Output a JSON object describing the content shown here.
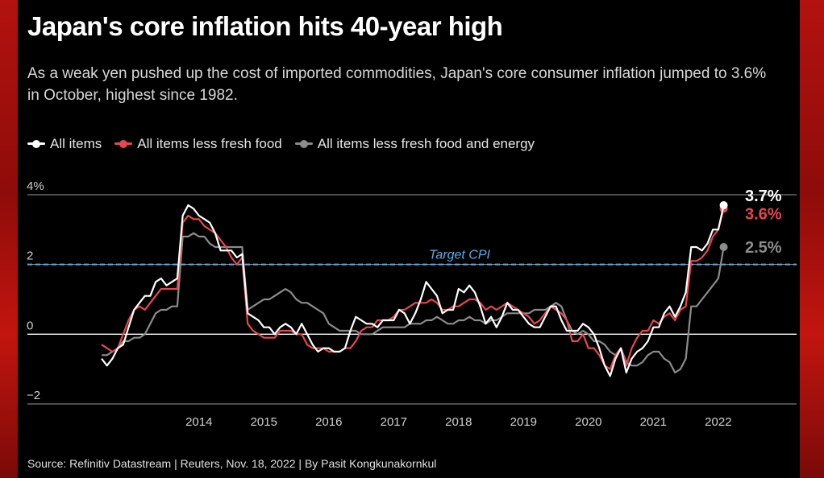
{
  "title": "Japan's core inflation hits 40-year high",
  "subtitle": "As a weak yen pushed up the cost of imported commodities, Japan's core consumer inflation jumped to 3.6% in October, highest since 1982.",
  "source": "Source: Refinitiv Datastream | Reuters, Nov. 18, 2022 | By Pasit Kongkunakornkul",
  "colors": {
    "all_items": "#ffffff",
    "less_fresh_food": "#e8474f",
    "less_fresh_food_energy": "#8c8c8c",
    "target": "#5aaee8",
    "background": "#000000"
  },
  "chart_data": {
    "type": "line",
    "x_start": "2013-01",
    "x_end": "2022-10",
    "x_tick_labels": [
      "2014",
      "2015",
      "2016",
      "2017",
      "2018",
      "2019",
      "2020",
      "2021",
      "2022"
    ],
    "y_tick_labels": [
      "4%",
      "2",
      "0",
      "−2"
    ],
    "y_ticks": [
      4,
      2,
      0,
      -2
    ],
    "ylim": [
      -2,
      4
    ],
    "grid": "horizontal",
    "legend_position": "top-left",
    "target": {
      "label": "Target CPI",
      "value": 2
    },
    "series": [
      {
        "name": "All items",
        "key": "all_items",
        "end_label": "3.7%",
        "values": [
          -0.7,
          -0.9,
          -0.7,
          -0.4,
          -0.3,
          0.2,
          0.7,
          0.9,
          1.1,
          1.1,
          1.5,
          1.6,
          1.4,
          1.5,
          1.6,
          3.4,
          3.7,
          3.6,
          3.4,
          3.3,
          3.2,
          2.9,
          2.4,
          2.4,
          2.4,
          2.2,
          2.3,
          0.6,
          0.5,
          0.4,
          0.2,
          0.2,
          0.0,
          0.2,
          0.3,
          0.2,
          0.0,
          0.3,
          0.0,
          -0.3,
          -0.5,
          -0.4,
          -0.4,
          -0.5,
          -0.5,
          -0.4,
          0.1,
          0.5,
          0.4,
          0.3,
          0.3,
          0.2,
          0.4,
          0.4,
          0.4,
          0.7,
          0.6,
          0.3,
          0.6,
          1.0,
          1.5,
          1.3,
          1.1,
          0.6,
          0.7,
          0.7,
          1.3,
          1.2,
          1.4,
          1.2,
          0.8,
          0.3,
          0.5,
          0.2,
          0.5,
          0.9,
          0.7,
          0.7,
          0.5,
          0.3,
          0.2,
          0.2,
          0.5,
          0.8,
          0.8,
          0.4,
          0.1,
          0.1,
          0.1,
          0.3,
          0.2,
          0.0,
          -0.4,
          -0.9,
          -1.2,
          -0.7,
          -0.4,
          -1.1,
          -0.7,
          -0.5,
          -0.4,
          -0.2,
          0.2,
          0.2,
          0.6,
          0.8,
          0.5,
          0.8,
          1.2,
          2.5,
          2.5,
          2.4,
          2.6,
          3.0,
          3.0,
          3.7
        ]
      },
      {
        "name": "All items less fresh food",
        "key": "less_fresh_food",
        "end_label": "3.6%",
        "values": [
          -0.3,
          -0.4,
          -0.5,
          -0.4,
          0.0,
          0.4,
          0.7,
          0.8,
          0.7,
          0.9,
          1.1,
          1.3,
          1.3,
          1.3,
          1.3,
          3.2,
          3.4,
          3.3,
          3.3,
          3.1,
          3.0,
          2.9,
          2.7,
          2.5,
          2.2,
          2.0,
          2.2,
          0.3,
          0.1,
          0.0,
          -0.1,
          -0.1,
          -0.1,
          0.1,
          0.1,
          0.1,
          0.0,
          0.0,
          -0.3,
          -0.4,
          -0.4,
          -0.4,
          -0.5,
          -0.5,
          -0.5,
          -0.4,
          -0.4,
          -0.2,
          0.1,
          0.2,
          0.2,
          0.4,
          0.4,
          0.4,
          0.5,
          0.7,
          0.7,
          0.8,
          0.9,
          0.9,
          0.9,
          1.0,
          0.9,
          0.7,
          0.7,
          0.8,
          0.8,
          0.9,
          1.0,
          1.0,
          0.9,
          0.7,
          0.8,
          0.7,
          0.8,
          0.9,
          0.8,
          0.7,
          0.6,
          0.5,
          0.3,
          0.4,
          0.6,
          0.8,
          0.7,
          0.6,
          0.4,
          -0.2,
          -0.2,
          0.0,
          -0.4,
          -0.4,
          -0.6,
          -0.9,
          -1.0,
          -0.6,
          -0.4,
          -0.9,
          -0.4,
          -0.1,
          0.1,
          0.1,
          0.4,
          0.3,
          0.5,
          0.6,
          0.4,
          0.7,
          0.8,
          2.1,
          2.1,
          2.2,
          2.4,
          2.8,
          3.0,
          3.6
        ]
      },
      {
        "name": "All items less fresh food and energy",
        "key": "less_fresh_food_energy",
        "end_label": "2.5%",
        "values": [
          -0.6,
          -0.6,
          -0.5,
          -0.4,
          -0.2,
          -0.2,
          -0.1,
          -0.1,
          0.0,
          0.3,
          0.6,
          0.7,
          0.7,
          0.8,
          0.8,
          2.8,
          2.8,
          2.9,
          2.8,
          2.8,
          2.6,
          2.5,
          2.5,
          2.5,
          2.5,
          2.5,
          2.5,
          0.7,
          0.8,
          0.9,
          1.0,
          1.0,
          1.1,
          1.2,
          1.3,
          1.2,
          1.0,
          0.9,
          0.9,
          0.8,
          0.7,
          0.6,
          0.3,
          0.2,
          0.1,
          0.1,
          0.1,
          0.1,
          0.0,
          0.0,
          0.0,
          0.1,
          0.2,
          0.2,
          0.2,
          0.2,
          0.2,
          0.3,
          0.3,
          0.3,
          0.4,
          0.4,
          0.5,
          0.4,
          0.3,
          0.3,
          0.4,
          0.4,
          0.5,
          0.4,
          0.4,
          0.3,
          0.4,
          0.4,
          0.5,
          0.6,
          0.6,
          0.6,
          0.6,
          0.6,
          0.7,
          0.7,
          0.7,
          0.8,
          0.9,
          0.8,
          0.4,
          0.1,
          0.0,
          0.1,
          0.0,
          -0.2,
          -0.2,
          -0.3,
          -0.5,
          -0.6,
          -0.4,
          -0.8,
          -0.9,
          -0.9,
          -0.8,
          -0.6,
          -0.5,
          -0.5,
          -0.7,
          -0.8,
          -1.1,
          -1.0,
          -0.7,
          0.8,
          0.8,
          1.0,
          1.2,
          1.4,
          1.6,
          2.5
        ]
      }
    ]
  }
}
